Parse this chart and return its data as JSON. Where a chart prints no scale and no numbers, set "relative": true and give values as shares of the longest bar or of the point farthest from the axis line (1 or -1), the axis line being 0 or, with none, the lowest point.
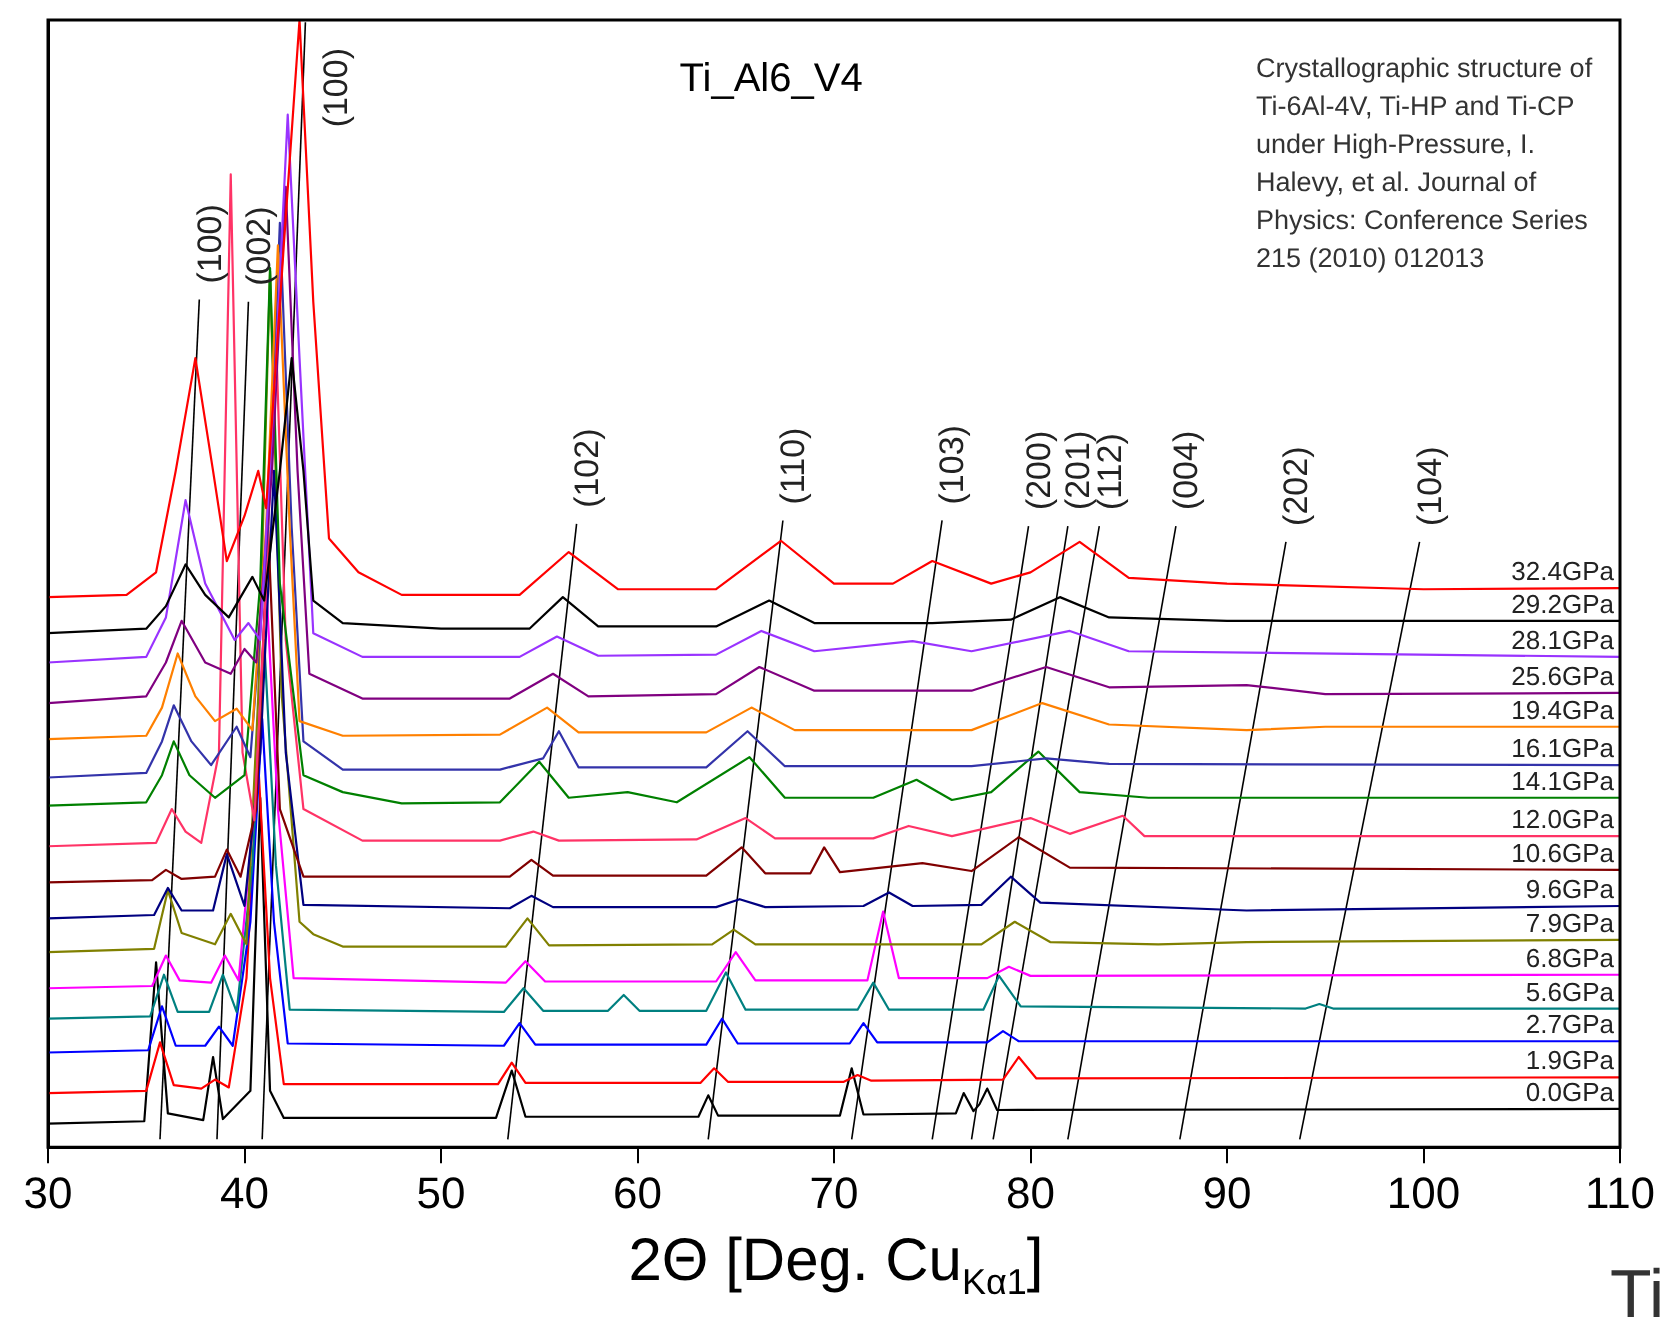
{
  "chart_data": {
    "type": "line",
    "title": "Ti_Al6_V4",
    "xlabel": "2Θ [Deg. Cu$_{Kα1}$]",
    "annotations": [
      "Crystallographic structure of Ti-6Al-4V, Ti-HP and Ti-CP under High-Pressure, I. Halevy, et al. Journal of Physics: Conference Series 215 (2010) 012013",
      "Ti"
    ],
    "xlim": [
      30,
      110
    ],
    "xticks": [
      30,
      40,
      50,
      60,
      70,
      80,
      90,
      100,
      110
    ],
    "relative": true,
    "grid": false,
    "legend": false,
    "marker": "none",
    "line_style": "solid",
    "series": [
      {
        "name": "32.4GPa",
        "color": "#ff0000",
        "x": [
          30,
          34,
          35.5,
          36.5,
          37.5,
          38.4,
          39.1,
          40,
          40.7,
          41.1,
          42,
          42.8,
          43.5,
          44.3,
          45.8,
          48,
          54,
          56.5,
          59,
          64,
          67.3,
          70,
          73,
          75,
          78,
          80,
          82.5,
          85,
          90,
          100,
          110
        ],
        "values": [
          0.488,
          0.49,
          0.51,
          0.6,
          0.7,
          0.6,
          0.52,
          0.56,
          0.6,
          0.567,
          0.8,
          1,
          0.75,
          0.54,
          0.51,
          0.49,
          0.49,
          0.528,
          0.495,
          0.495,
          0.538,
          0.5,
          0.5,
          0.52,
          0.5,
          0.51,
          0.537,
          0.505,
          0.5,
          0.495,
          0.496
        ]
      },
      {
        "name": "29.2GPa",
        "color": "#000000",
        "x": [
          30,
          35,
          36,
          37,
          38,
          39.2,
          40.4,
          41,
          41.8,
          42.4,
          43,
          43.5,
          45,
          50,
          54.5,
          56.2,
          58,
          64,
          66.7,
          69,
          75,
          79,
          81.5,
          84,
          90,
          110
        ],
        "values": [
          0.456,
          0.46,
          0.48,
          0.517,
          0.49,
          0.47,
          0.506,
          0.485,
          0.6,
          0.7,
          0.6,
          0.485,
          0.465,
          0.46,
          0.46,
          0.488,
          0.462,
          0.462,
          0.485,
          0.465,
          0.465,
          0.468,
          0.488,
          0.47,
          0.467,
          0.467
        ]
      },
      {
        "name": "28.1GPa",
        "color": "#9933ff",
        "x": [
          30,
          35,
          36,
          37,
          38,
          39.5,
          40.2,
          40.8,
          41.6,
          42.2,
          42.8,
          43.5,
          46,
          54,
          55.9,
          58,
          64,
          66.3,
          69,
          74,
          77,
          82,
          85,
          110
        ],
        "values": [
          0.43,
          0.435,
          0.47,
          0.574,
          0.5,
          0.45,
          0.465,
          0.45,
          0.7,
          0.916,
          0.7,
          0.456,
          0.435,
          0.435,
          0.453,
          0.436,
          0.437,
          0.458,
          0.44,
          0.449,
          0.44,
          0.458,
          0.44,
          0.435
        ]
      },
      {
        "name": "25.6GPa",
        "color": "#800080",
        "x": [
          30,
          35,
          36,
          36.8,
          38,
          39.3,
          40,
          40.6,
          41.4,
          42.1,
          42.7,
          43.3,
          46,
          53.5,
          55.7,
          57.5,
          64,
          66.2,
          69,
          77,
          80.8,
          84,
          91,
          95,
          110
        ],
        "values": [
          0.394,
          0.4,
          0.43,
          0.467,
          0.43,
          0.42,
          0.442,
          0.43,
          0.6,
          0.852,
          0.6,
          0.42,
          0.398,
          0.398,
          0.42,
          0.4,
          0.402,
          0.426,
          0.405,
          0.405,
          0.426,
          0.408,
          0.41,
          0.402,
          0.403
        ]
      },
      {
        "name": "19.4GPa",
        "color": "#ff8000",
        "x": [
          30,
          35,
          35.8,
          36.6,
          37.5,
          38.5,
          39.6,
          40.4,
          41.1,
          41.7,
          42.3,
          42.8,
          45,
          53,
          55.4,
          57,
          63.5,
          65.8,
          68,
          77,
          80.6,
          84,
          91,
          95,
          110
        ],
        "values": [
          0.362,
          0.365,
          0.39,
          0.438,
          0.4,
          0.378,
          0.389,
          0.37,
          0.55,
          0.8,
          0.55,
          0.378,
          0.365,
          0.366,
          0.39,
          0.368,
          0.368,
          0.39,
          0.37,
          0.37,
          0.394,
          0.375,
          0.37,
          0.373,
          0.373
        ]
      },
      {
        "name": "16.1GPa",
        "color": "#3333aa",
        "x": [
          30,
          35,
          35.8,
          36.4,
          37.3,
          38.3,
          39.6,
          40.3,
          41.2,
          41.8,
          42.4,
          43,
          45,
          53,
          55.2,
          56,
          57,
          63.5,
          65.6,
          67.5,
          77,
          80.8,
          84,
          110
        ],
        "values": [
          0.328,
          0.332,
          0.36,
          0.392,
          0.36,
          0.339,
          0.373,
          0.346,
          0.55,
          0.82,
          0.55,
          0.36,
          0.335,
          0.335,
          0.345,
          0.369,
          0.337,
          0.337,
          0.369,
          0.338,
          0.338,
          0.345,
          0.34,
          0.339
        ]
      },
      {
        "name": "14.1GPa",
        "color": "#008000",
        "x": [
          30,
          35,
          35.8,
          36.4,
          37.2,
          38.5,
          40,
          40.8,
          41.3,
          41.8,
          43,
          45,
          48,
          53,
          55,
          56.5,
          59.5,
          62,
          65.7,
          67.5,
          72,
          74.2,
          76,
          78,
          80.4,
          82.5,
          86,
          110
        ],
        "values": [
          0.303,
          0.306,
          0.33,
          0.36,
          0.33,
          0.31,
          0.33,
          0.5,
          0.78,
          0.5,
          0.33,
          0.315,
          0.305,
          0.306,
          0.342,
          0.31,
          0.315,
          0.306,
          0.346,
          0.31,
          0.31,
          0.326,
          0.308,
          0.315,
          0.351,
          0.315,
          0.31,
          0.31
        ]
      },
      {
        "name": "12.0GPa",
        "color": "#ff3366",
        "x": [
          30,
          35.5,
          36.3,
          37,
          37.8,
          38.7,
          39.3,
          39.9,
          40.5,
          41.1,
          41.6,
          42.1,
          43,
          46,
          53,
          54.7,
          56,
          63,
          65.5,
          67,
          72,
          73.8,
          76,
          80,
          82,
          84.7,
          85.8,
          110
        ],
        "values": [
          0.267,
          0.27,
          0.3,
          0.28,
          0.27,
          0.35,
          0.863,
          0.35,
          0.29,
          0.5,
          0.72,
          0.45,
          0.3,
          0.272,
          0.272,
          0.28,
          0.272,
          0.273,
          0.292,
          0.274,
          0.274,
          0.285,
          0.276,
          0.292,
          0.278,
          0.294,
          0.276,
          0.276
        ]
      },
      {
        "name": "10.6GPa",
        "color": "#800000",
        "x": [
          30,
          35.3,
          36,
          36.8,
          38.5,
          39.1,
          39.8,
          40.6,
          41.2,
          41.8,
          43,
          53.5,
          54.6,
          55.7,
          63.5,
          65.3,
          66.5,
          68.8,
          69.5,
          70.3,
          74.5,
          77,
          79.4,
          82,
          110
        ],
        "values": [
          0.235,
          0.237,
          0.246,
          0.238,
          0.24,
          0.264,
          0.24,
          0.3,
          0.55,
          0.3,
          0.24,
          0.24,
          0.255,
          0.241,
          0.241,
          0.266,
          0.243,
          0.243,
          0.266,
          0.244,
          0.252,
          0.245,
          0.275,
          0.248,
          0.246
        ]
      },
      {
        "name": "9.6GPa",
        "color": "#000080",
        "x": [
          30,
          35.4,
          36.1,
          36.8,
          38.4,
          39.1,
          40,
          40.8,
          41.5,
          42.1,
          43,
          53.5,
          54.6,
          55.7,
          64,
          65.2,
          66.5,
          71.5,
          72.8,
          74,
          77.5,
          79,
          80.5,
          91,
          110
        ],
        "values": [
          0.203,
          0.206,
          0.23,
          0.21,
          0.21,
          0.26,
          0.214,
          0.35,
          0.6,
          0.35,
          0.215,
          0.212,
          0.223,
          0.213,
          0.213,
          0.22,
          0.213,
          0.214,
          0.226,
          0.214,
          0.215,
          0.24,
          0.217,
          0.21,
          0.214
        ]
      },
      {
        "name": "7.9GPa",
        "color": "#808000",
        "x": [
          30,
          35.4,
          36.1,
          36.8,
          38.5,
          39.3,
          40.1,
          40.7,
          41.3,
          41.9,
          42.8,
          43.5,
          45,
          53.3,
          54.4,
          55.5,
          63.8,
          64.9,
          66,
          77.5,
          79.2,
          81,
          86.5,
          91,
          110
        ],
        "values": [
          0.173,
          0.176,
          0.228,
          0.19,
          0.18,
          0.207,
          0.18,
          0.4,
          0.777,
          0.4,
          0.2,
          0.189,
          0.178,
          0.178,
          0.203,
          0.179,
          0.18,
          0.193,
          0.18,
          0.18,
          0.2,
          0.182,
          0.18,
          0.182,
          0.184
        ]
      },
      {
        "name": "6.8GPa",
        "color": "#ff00ff",
        "x": [
          30,
          35.3,
          36,
          36.7,
          38.3,
          39,
          39.7,
          40.5,
          41.1,
          41.7,
          42.5,
          53.3,
          54.3,
          55.3,
          64,
          65,
          66,
          71.7,
          72.5,
          73.3,
          77.8,
          78.9,
          80,
          110
        ],
        "values": [
          0.141,
          0.143,
          0.17,
          0.148,
          0.146,
          0.17,
          0.148,
          0.3,
          0.5,
          0.3,
          0.15,
          0.146,
          0.165,
          0.147,
          0.147,
          0.173,
          0.148,
          0.148,
          0.209,
          0.15,
          0.15,
          0.16,
          0.152,
          0.153
        ]
      },
      {
        "name": "5.6GPa",
        "color": "#008080",
        "x": [
          30,
          35.2,
          35.9,
          36.6,
          38.2,
          38.9,
          39.6,
          40.4,
          41,
          41.6,
          42.3,
          53.2,
          54.2,
          55.2,
          58.5,
          59.3,
          60.1,
          63.5,
          64.5,
          65.5,
          71.2,
          72,
          72.8,
          77.6,
          78.4,
          79.5,
          94,
          94.7,
          95.4,
          110
        ],
        "values": [
          0.114,
          0.116,
          0.153,
          0.12,
          0.12,
          0.153,
          0.12,
          0.25,
          0.45,
          0.25,
          0.122,
          0.12,
          0.141,
          0.121,
          0.121,
          0.135,
          0.121,
          0.121,
          0.155,
          0.122,
          0.122,
          0.146,
          0.122,
          0.122,
          0.152,
          0.125,
          0.123,
          0.127,
          0.123,
          0.123
        ]
      },
      {
        "name": "2.7GPa",
        "color": "#0000ff",
        "x": [
          30,
          35.1,
          35.8,
          36.5,
          38,
          38.7,
          39.4,
          40.3,
          40.9,
          41.5,
          42.2,
          53.2,
          54,
          54.8,
          63.5,
          64.3,
          65.1,
          70.8,
          71.5,
          72.2,
          77.8,
          78.6,
          79.4,
          110
        ],
        "values": [
          0.084,
          0.086,
          0.125,
          0.09,
          0.09,
          0.107,
          0.09,
          0.2,
          0.38,
          0.2,
          0.092,
          0.09,
          0.11,
          0.091,
          0.091,
          0.114,
          0.092,
          0.092,
          0.11,
          0.093,
          0.093,
          0.103,
          0.094,
          0.094
        ]
      },
      {
        "name": "1.9GPa",
        "color": "#ff0000",
        "x": [
          30,
          35,
          35.7,
          36.4,
          37.8,
          38.5,
          39.2,
          40.1,
          40.7,
          41.3,
          42,
          52.9,
          53.6,
          54.3,
          63.2,
          63.9,
          64.6,
          70.5,
          71.2,
          71.9,
          78.6,
          79.4,
          80.3,
          110
        ],
        "values": [
          0.048,
          0.05,
          0.093,
          0.055,
          0.052,
          0.06,
          0.053,
          0.15,
          0.34,
          0.15,
          0.056,
          0.056,
          0.075,
          0.057,
          0.057,
          0.07,
          0.058,
          0.058,
          0.064,
          0.059,
          0.06,
          0.08,
          0.061,
          0.062
        ]
      },
      {
        "name": "0.0GPa",
        "color": "#000000",
        "x": [
          30,
          34.9,
          35.5,
          36.1,
          37.9,
          38.4,
          38.9,
          40.3,
          40.8,
          41.3,
          42,
          52.8,
          53.6,
          54.3,
          63.1,
          63.6,
          64.1,
          70.3,
          70.9,
          71.5,
          76.2,
          76.6,
          77.1,
          77.4,
          77.8,
          78.3,
          110
        ],
        "values": [
          0.021,
          0.023,
          0.164,
          0.03,
          0.024,
          0.08,
          0.025,
          0.05,
          0.31,
          0.05,
          0.026,
          0.026,
          0.068,
          0.027,
          0.027,
          0.046,
          0.028,
          0.028,
          0.07,
          0.029,
          0.03,
          0.048,
          0.032,
          0.038,
          0.052,
          0.033,
          0.034
        ]
      },
      {
        "name": "(100)",
        "color": "#000000",
        "x": [
          35.7,
          37.7
        ],
        "values": [
          0.007,
          0.752
        ]
      },
      {
        "name": "(002)",
        "color": "#000000",
        "x": [
          38.6,
          40.2
        ],
        "values": [
          0.007,
          0.75
        ]
      },
      {
        "name": "(100)",
        "color": "#000000",
        "x": [
          40.9,
          43.1
        ],
        "values": [
          0.007,
          0.998
        ]
      },
      {
        "name": "(102)",
        "color": "#000000",
        "x": [
          53.4,
          56.9
        ],
        "values": [
          0.007,
          0.553
        ]
      },
      {
        "name": "(110)",
        "color": "#000000",
        "x": [
          63.6,
          67.4
        ],
        "values": [
          0.007,
          0.556
        ]
      },
      {
        "name": "(103)",
        "color": "#000000",
        "x": [
          70.9,
          75.5
        ],
        "values": [
          0.007,
          0.556
        ]
      },
      {
        "name": "(200)",
        "color": "#000000",
        "x": [
          75.0,
          79.9
        ],
        "values": [
          0.007,
          0.551
        ]
      },
      {
        "name": "(201)",
        "color": "#000000",
        "x": [
          77.0,
          81.9
        ],
        "values": [
          0.007,
          0.551
        ]
      },
      {
        "name": "(112)",
        "color": "#000000",
        "x": [
          78.1,
          83.5
        ],
        "values": [
          0.007,
          0.551
        ]
      },
      {
        "name": "(004)",
        "color": "#000000",
        "x": [
          81.9,
          87.4
        ],
        "values": [
          0.007,
          0.551
        ]
      },
      {
        "name": "(202)",
        "color": "#000000",
        "x": [
          87.6,
          93.0
        ],
        "values": [
          0.007,
          0.537
        ]
      },
      {
        "name": "(104)",
        "color": "#000000",
        "x": [
          93.7,
          99.8
        ],
        "values": [
          0.007,
          0.537
        ]
      }
    ]
  }
}
